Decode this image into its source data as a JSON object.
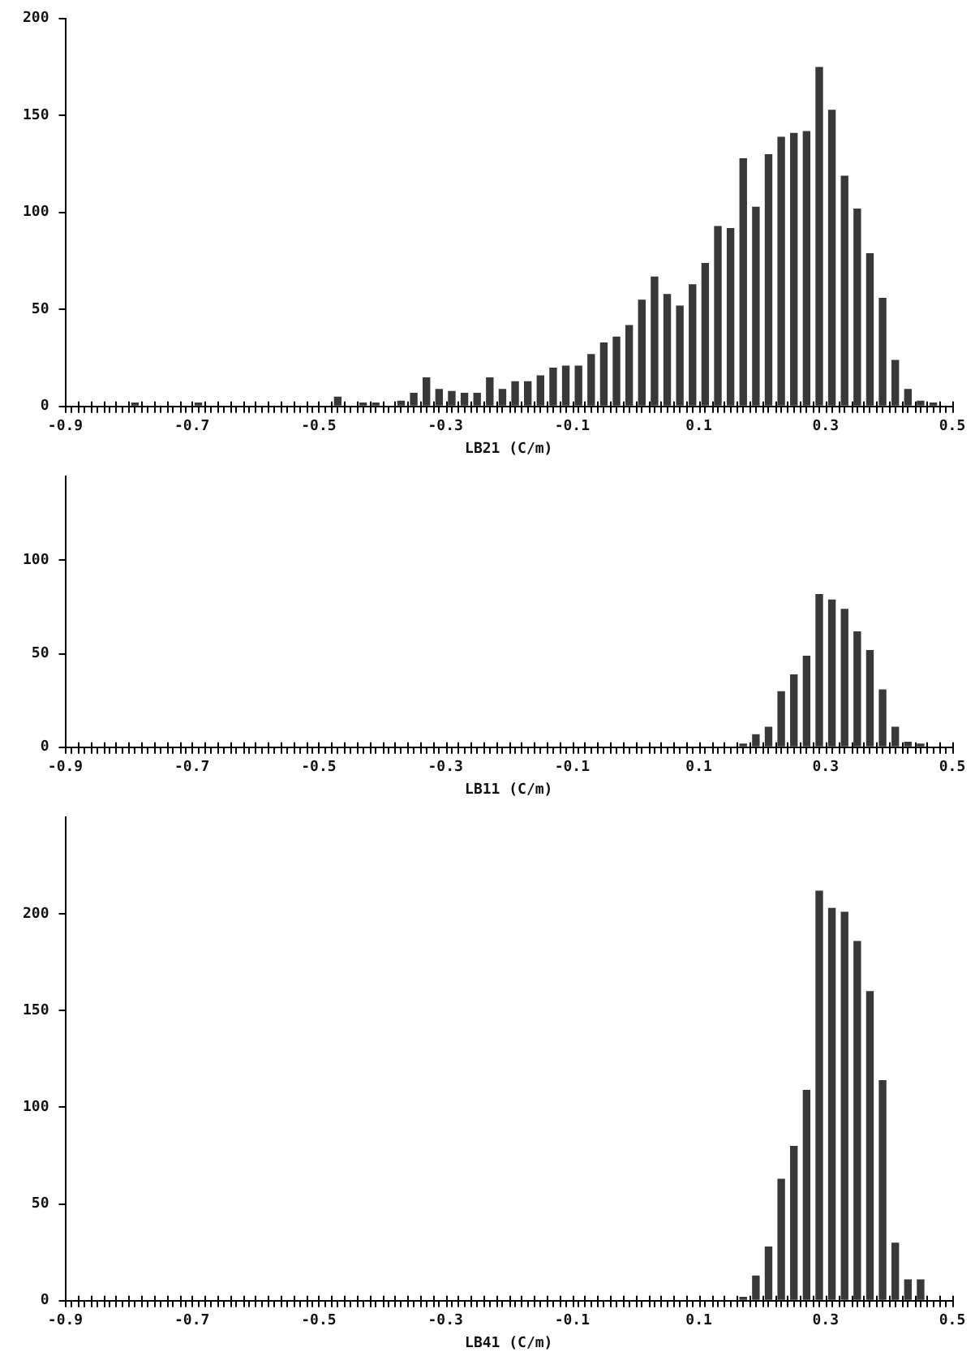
{
  "chart_data": [
    {
      "type": "histogram",
      "xlabel": "LB21 (C/m)",
      "color": "#383838",
      "grid": false,
      "bins": [
        -0.9,
        -0.88,
        -0.86,
        -0.84,
        -0.82,
        -0.8,
        -0.78,
        -0.76,
        -0.74,
        -0.72,
        -0.7,
        -0.68,
        -0.66,
        -0.64,
        -0.62,
        -0.6,
        -0.58,
        -0.56,
        -0.54,
        -0.52,
        -0.5,
        -0.48,
        -0.46,
        -0.44,
        -0.42,
        -0.4,
        -0.38,
        -0.36,
        -0.34,
        -0.32,
        -0.3,
        -0.28,
        -0.26,
        -0.24,
        -0.22,
        -0.2,
        -0.18,
        -0.16,
        -0.14,
        -0.12,
        -0.1,
        -0.08,
        -0.06,
        -0.04,
        -0.02,
        0,
        0.02,
        0.04,
        0.06,
        0.08,
        0.1,
        0.12,
        0.14,
        0.16,
        0.18,
        0.2,
        0.22,
        0.24,
        0.26,
        0.28,
        0.3,
        0.32,
        0.34,
        0.36,
        0.38,
        0.4,
        0.42,
        0.44,
        0.46,
        0.48,
        0.5
      ],
      "values": [
        0,
        0,
        0,
        0,
        0,
        2,
        0,
        0,
        0,
        0,
        2,
        0,
        0,
        0,
        0,
        0,
        0,
        0,
        0,
        0,
        0,
        5,
        0,
        2,
        2,
        0,
        3,
        7,
        15,
        9,
        8,
        7,
        7,
        15,
        9,
        13,
        13,
        16,
        20,
        21,
        21,
        27,
        33,
        36,
        42,
        55,
        67,
        58,
        52,
        63,
        74,
        93,
        92,
        128,
        103,
        130,
        139,
        141,
        142,
        175,
        153,
        119,
        102,
        79,
        56,
        24,
        9,
        3,
        2,
        0
      ],
      "xlim": [
        -0.9,
        0.5
      ],
      "xticks": [
        -0.9,
        {
          "value": -0.88,
          "label": null
        },
        {
          "value": -0.86,
          "label": null
        },
        {
          "value": -0.84,
          "label": null
        },
        {
          "value": -0.82,
          "label": null
        },
        {
          "value": -0.8,
          "label": null
        },
        {
          "value": -0.78,
          "label": null
        },
        {
          "value": -0.76,
          "label": null
        },
        {
          "value": -0.74,
          "label": null
        },
        {
          "value": -0.72,
          "label": null
        },
        -0.7,
        {
          "value": -0.68,
          "label": null
        },
        {
          "value": -0.66,
          "label": null
        },
        {
          "value": -0.64,
          "label": null
        },
        {
          "value": -0.62,
          "label": null
        },
        {
          "value": -0.6,
          "label": null
        },
        {
          "value": -0.58,
          "label": null
        },
        {
          "value": -0.56,
          "label": null
        },
        {
          "value": -0.54,
          "label": null
        },
        {
          "value": -0.52,
          "label": null
        },
        -0.5,
        {
          "value": -0.48,
          "label": null
        },
        {
          "value": -0.46,
          "label": null
        },
        {
          "value": -0.44,
          "label": null
        },
        {
          "value": -0.42,
          "label": null
        },
        {
          "value": -0.4,
          "label": null
        },
        {
          "value": -0.38,
          "label": null
        },
        {
          "value": -0.36,
          "label": null
        },
        {
          "value": -0.34,
          "label": null
        },
        {
          "value": -0.32,
          "label": null
        },
        -0.3,
        {
          "value": -0.28,
          "label": null
        },
        {
          "value": -0.26,
          "label": null
        },
        {
          "value": -0.24,
          "label": null
        },
        {
          "value": -0.22,
          "label": null
        },
        {
          "value": -0.2,
          "label": null
        },
        {
          "value": -0.18,
          "label": null
        },
        {
          "value": -0.16,
          "label": null
        },
        {
          "value": -0.14,
          "label": null
        },
        {
          "value": -0.12,
          "label": null
        },
        -0.1,
        {
          "value": -0.08,
          "label": null
        },
        {
          "value": -0.06,
          "label": null
        },
        {
          "value": -0.04,
          "label": null
        },
        {
          "value": -0.02,
          "label": null
        },
        {
          "value": 0,
          "label": null
        },
        {
          "value": 0.02,
          "label": null
        },
        {
          "value": 0.04,
          "label": null
        },
        {
          "value": 0.06,
          "label": null
        },
        {
          "value": 0.08,
          "label": null
        },
        0.1,
        {
          "value": 0.12,
          "label": null
        },
        {
          "value": 0.14,
          "label": null
        },
        {
          "value": 0.16,
          "label": null
        },
        {
          "value": 0.18,
          "label": null
        },
        {
          "value": 0.2,
          "label": null
        },
        {
          "value": 0.22,
          "label": null
        },
        {
          "value": 0.24,
          "label": null
        },
        {
          "value": 0.26,
          "label": null
        },
        {
          "value": 0.28,
          "label": null
        },
        0.3,
        {
          "value": 0.32,
          "label": null
        },
        {
          "value": 0.34,
          "label": null
        },
        {
          "value": 0.36,
          "label": null
        },
        {
          "value": 0.38,
          "label": null
        },
        {
          "value": 0.4,
          "label": null
        },
        {
          "value": 0.42,
          "label": null
        },
        {
          "value": 0.44,
          "label": null
        },
        {
          "value": 0.46,
          "label": null
        },
        {
          "value": 0.48,
          "label": null
        },
        0.5
      ],
      "ylim": [
        0,
        200
      ],
      "yticks": [
        0,
        50,
        100,
        150,
        200
      ]
    },
    {
      "type": "histogram",
      "xlabel": "LB11 (C/m)",
      "color": "#383838",
      "grid": false,
      "bins": [
        -0.9,
        -0.88,
        -0.86,
        -0.84,
        -0.82,
        -0.8,
        -0.78,
        -0.76,
        -0.74,
        -0.72,
        -0.7,
        -0.68,
        -0.66,
        -0.64,
        -0.62,
        -0.6,
        -0.58,
        -0.56,
        -0.54,
        -0.52,
        -0.5,
        -0.48,
        -0.46,
        -0.44,
        -0.42,
        -0.4,
        -0.38,
        -0.36,
        -0.34,
        -0.32,
        -0.3,
        -0.28,
        -0.26,
        -0.24,
        -0.22,
        -0.2,
        -0.18,
        -0.16,
        -0.14,
        -0.12,
        -0.1,
        -0.08,
        -0.06,
        -0.04,
        -0.02,
        0,
        0.02,
        0.04,
        0.06,
        0.08,
        0.1,
        0.12,
        0.14,
        0.16,
        0.18,
        0.2,
        0.22,
        0.24,
        0.26,
        0.28,
        0.3,
        0.32,
        0.34,
        0.36,
        0.38,
        0.4,
        0.42,
        0.44,
        0.46,
        0.48,
        0.5
      ],
      "values": [
        0,
        0,
        0,
        0,
        0,
        0,
        0,
        0,
        0,
        0,
        0,
        0,
        0,
        0,
        0,
        0,
        0,
        0,
        0,
        0,
        0,
        0,
        0,
        0,
        0,
        0,
        0,
        0,
        0,
        0,
        0,
        0,
        0,
        0,
        0,
        0,
        0,
        0,
        0,
        0,
        0,
        0,
        0,
        0,
        0,
        0,
        0,
        0,
        0,
        0,
        0,
        0,
        0,
        2,
        7,
        11,
        30,
        39,
        49,
        82,
        79,
        74,
        62,
        52,
        31,
        11,
        3,
        2,
        0,
        0
      ],
      "xlim": [
        -0.9,
        0.5
      ],
      "xticks": [
        -0.9,
        {
          "value": -0.88,
          "label": null
        },
        {
          "value": -0.86,
          "label": null
        },
        {
          "value": -0.84,
          "label": null
        },
        {
          "value": -0.82,
          "label": null
        },
        {
          "value": -0.8,
          "label": null
        },
        {
          "value": -0.78,
          "label": null
        },
        {
          "value": -0.76,
          "label": null
        },
        {
          "value": -0.74,
          "label": null
        },
        {
          "value": -0.72,
          "label": null
        },
        -0.7,
        {
          "value": -0.68,
          "label": null
        },
        {
          "value": -0.66,
          "label": null
        },
        {
          "value": -0.64,
          "label": null
        },
        {
          "value": -0.62,
          "label": null
        },
        {
          "value": -0.6,
          "label": null
        },
        {
          "value": -0.58,
          "label": null
        },
        {
          "value": -0.56,
          "label": null
        },
        {
          "value": -0.54,
          "label": null
        },
        {
          "value": -0.52,
          "label": null
        },
        -0.5,
        {
          "value": -0.48,
          "label": null
        },
        {
          "value": -0.46,
          "label": null
        },
        {
          "value": -0.44,
          "label": null
        },
        {
          "value": -0.42,
          "label": null
        },
        {
          "value": -0.4,
          "label": null
        },
        {
          "value": -0.38,
          "label": null
        },
        {
          "value": -0.36,
          "label": null
        },
        {
          "value": -0.34,
          "label": null
        },
        {
          "value": -0.32,
          "label": null
        },
        -0.3,
        {
          "value": -0.28,
          "label": null
        },
        {
          "value": -0.26,
          "label": null
        },
        {
          "value": -0.24,
          "label": null
        },
        {
          "value": -0.22,
          "label": null
        },
        {
          "value": -0.2,
          "label": null
        },
        {
          "value": -0.18,
          "label": null
        },
        {
          "value": -0.16,
          "label": null
        },
        {
          "value": -0.14,
          "label": null
        },
        {
          "value": -0.12,
          "label": null
        },
        -0.1,
        {
          "value": -0.08,
          "label": null
        },
        {
          "value": -0.06,
          "label": null
        },
        {
          "value": -0.04,
          "label": null
        },
        {
          "value": -0.02,
          "label": null
        },
        {
          "value": 0,
          "label": null
        },
        {
          "value": 0.02,
          "label": null
        },
        {
          "value": 0.04,
          "label": null
        },
        {
          "value": 0.06,
          "label": null
        },
        {
          "value": 0.08,
          "label": null
        },
        0.1,
        {
          "value": 0.12,
          "label": null
        },
        {
          "value": 0.14,
          "label": null
        },
        {
          "value": 0.16,
          "label": null
        },
        {
          "value": 0.18,
          "label": null
        },
        {
          "value": 0.2,
          "label": null
        },
        {
          "value": 0.22,
          "label": null
        },
        {
          "value": 0.24,
          "label": null
        },
        {
          "value": 0.26,
          "label": null
        },
        {
          "value": 0.28,
          "label": null
        },
        0.3,
        {
          "value": 0.32,
          "label": null
        },
        {
          "value": 0.34,
          "label": null
        },
        {
          "value": 0.36,
          "label": null
        },
        {
          "value": 0.38,
          "label": null
        },
        {
          "value": 0.4,
          "label": null
        },
        {
          "value": 0.42,
          "label": null
        },
        {
          "value": 0.44,
          "label": null
        },
        {
          "value": 0.46,
          "label": null
        },
        {
          "value": 0.48,
          "label": null
        },
        0.5
      ],
      "ylim": [
        0,
        145
      ],
      "yticks": [
        0,
        50,
        100
      ]
    },
    {
      "type": "histogram",
      "xlabel": "LB41 (C/m)",
      "color": "#383838",
      "grid": false,
      "bins": [
        -0.9,
        -0.88,
        -0.86,
        -0.84,
        -0.82,
        -0.8,
        -0.78,
        -0.76,
        -0.74,
        -0.72,
        -0.7,
        -0.68,
        -0.66,
        -0.64,
        -0.62,
        -0.6,
        -0.58,
        -0.56,
        -0.54,
        -0.52,
        -0.5,
        -0.48,
        -0.46,
        -0.44,
        -0.42,
        -0.4,
        -0.38,
        -0.36,
        -0.34,
        -0.32,
        -0.3,
        -0.28,
        -0.26,
        -0.24,
        -0.22,
        -0.2,
        -0.18,
        -0.16,
        -0.14,
        -0.12,
        -0.1,
        -0.08,
        -0.06,
        -0.04,
        -0.02,
        0,
        0.02,
        0.04,
        0.06,
        0.08,
        0.1,
        0.12,
        0.14,
        0.16,
        0.18,
        0.2,
        0.22,
        0.24,
        0.26,
        0.28,
        0.3,
        0.32,
        0.34,
        0.36,
        0.38,
        0.4,
        0.42,
        0.44,
        0.46,
        0.48,
        0.5
      ],
      "values": [
        0,
        0,
        0,
        0,
        0,
        0,
        0,
        0,
        0,
        0,
        0,
        0,
        0,
        0,
        0,
        0,
        0,
        0,
        0,
        0,
        0,
        0,
        0,
        0,
        0,
        0,
        0,
        0,
        0,
        0,
        0,
        0,
        0,
        0,
        0,
        0,
        0,
        0,
        0,
        0,
        0,
        0,
        0,
        0,
        0,
        0,
        0,
        0,
        0,
        0,
        0,
        0,
        0,
        2,
        13,
        28,
        63,
        80,
        109,
        212,
        203,
        201,
        186,
        160,
        114,
        30,
        11,
        11,
        0,
        0
      ],
      "xlim": [
        -0.9,
        0.5
      ],
      "xticks": [
        -0.9,
        {
          "value": -0.88,
          "label": null
        },
        {
          "value": -0.86,
          "label": null
        },
        {
          "value": -0.84,
          "label": null
        },
        {
          "value": -0.82,
          "label": null
        },
        {
          "value": -0.8,
          "label": null
        },
        {
          "value": -0.78,
          "label": null
        },
        {
          "value": -0.76,
          "label": null
        },
        {
          "value": -0.74,
          "label": null
        },
        {
          "value": -0.72,
          "label": null
        },
        -0.7,
        {
          "value": -0.68,
          "label": null
        },
        {
          "value": -0.66,
          "label": null
        },
        {
          "value": -0.64,
          "label": null
        },
        {
          "value": -0.62,
          "label": null
        },
        {
          "value": -0.6,
          "label": null
        },
        {
          "value": -0.58,
          "label": null
        },
        {
          "value": -0.56,
          "label": null
        },
        {
          "value": -0.54,
          "label": null
        },
        {
          "value": -0.52,
          "label": null
        },
        -0.5,
        {
          "value": -0.48,
          "label": null
        },
        {
          "value": -0.46,
          "label": null
        },
        {
          "value": -0.44,
          "label": null
        },
        {
          "value": -0.42,
          "label": null
        },
        {
          "value": -0.4,
          "label": null
        },
        {
          "value": -0.38,
          "label": null
        },
        {
          "value": -0.36,
          "label": null
        },
        {
          "value": -0.34,
          "label": null
        },
        {
          "value": -0.32,
          "label": null
        },
        -0.3,
        {
          "value": -0.28,
          "label": null
        },
        {
          "value": -0.26,
          "label": null
        },
        {
          "value": -0.24,
          "label": null
        },
        {
          "value": -0.22,
          "label": null
        },
        {
          "value": -0.2,
          "label": null
        },
        {
          "value": -0.18,
          "label": null
        },
        {
          "value": -0.16,
          "label": null
        },
        {
          "value": -0.14,
          "label": null
        },
        {
          "value": -0.12,
          "label": null
        },
        -0.1,
        {
          "value": -0.08,
          "label": null
        },
        {
          "value": -0.06,
          "label": null
        },
        {
          "value": -0.04,
          "label": null
        },
        {
          "value": -0.02,
          "label": null
        },
        {
          "value": 0,
          "label": null
        },
        {
          "value": 0.02,
          "label": null
        },
        {
          "value": 0.04,
          "label": null
        },
        {
          "value": 0.06,
          "label": null
        },
        {
          "value": 0.08,
          "label": null
        },
        0.1,
        {
          "value": 0.12,
          "label": null
        },
        {
          "value": 0.14,
          "label": null
        },
        {
          "value": 0.16,
          "label": null
        },
        {
          "value": 0.18,
          "label": null
        },
        {
          "value": 0.2,
          "label": null
        },
        {
          "value": 0.22,
          "label": null
        },
        {
          "value": 0.24,
          "label": null
        },
        {
          "value": 0.26,
          "label": null
        },
        {
          "value": 0.28,
          "label": null
        },
        0.3,
        {
          "value": 0.32,
          "label": null
        },
        {
          "value": 0.34,
          "label": null
        },
        {
          "value": 0.36,
          "label": null
        },
        {
          "value": 0.38,
          "label": null
        },
        {
          "value": 0.4,
          "label": null
        },
        {
          "value": 0.42,
          "label": null
        },
        {
          "value": 0.44,
          "label": null
        },
        {
          "value": 0.46,
          "label": null
        },
        {
          "value": 0.48,
          "label": null
        },
        0.5
      ],
      "ylim": [
        0,
        250
      ],
      "yticks": [
        0,
        50,
        100,
        150,
        200
      ]
    }
  ]
}
